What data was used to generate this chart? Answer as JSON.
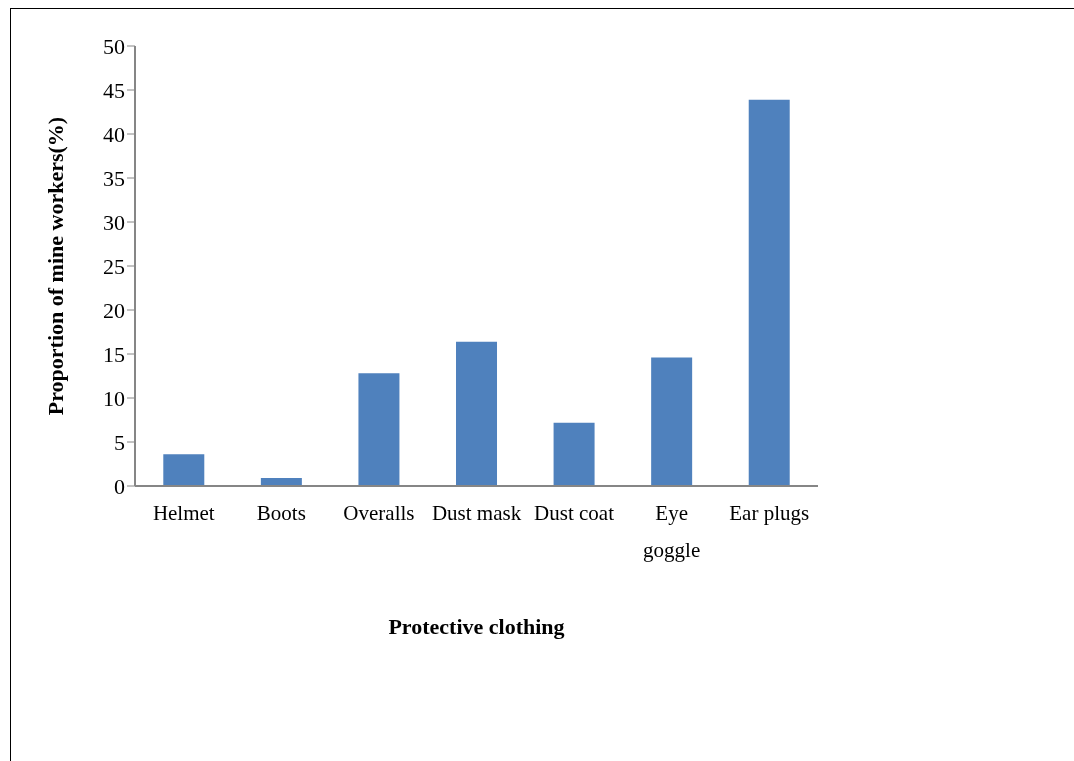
{
  "chart_data": {
    "type": "bar",
    "xlabel": "Protective clothing",
    "ylabel": "Proportion of mine workers(%)",
    "categories": [
      "Helmet",
      "Boots",
      "Overalls",
      "Dust mask",
      "Dust coat",
      "Eye goggle",
      "Ear plugs"
    ],
    "values": [
      3.6,
      0.9,
      12.8,
      16.4,
      7.2,
      14.6,
      43.9
    ],
    "color": "#4f81bd",
    "ylim": [
      0,
      50
    ],
    "yticks": [
      0,
      5,
      10,
      15,
      20,
      25,
      30,
      35,
      40,
      45,
      50
    ]
  }
}
